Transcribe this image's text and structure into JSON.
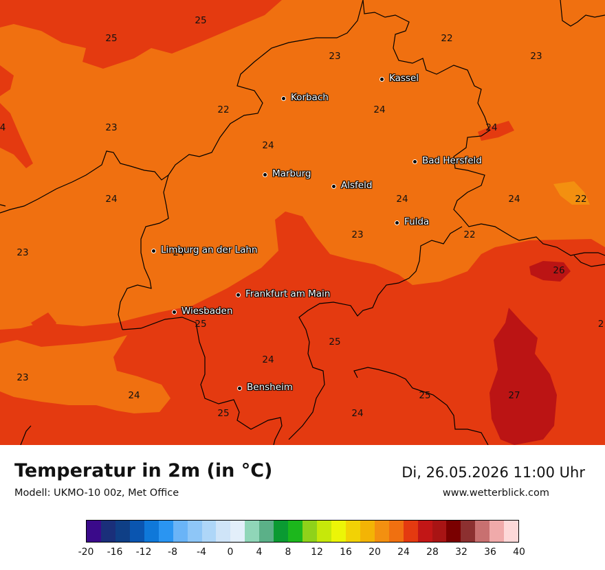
{
  "map": {
    "temperature_labels": [
      {
        "text": "25",
        "id": "t1"
      },
      {
        "text": "25",
        "id": "t2"
      },
      {
        "text": "23",
        "id": "t3"
      },
      {
        "text": "22",
        "id": "t4"
      },
      {
        "text": "23",
        "id": "t5"
      },
      {
        "text": "24",
        "id": "t6"
      },
      {
        "text": "22",
        "id": "t7"
      },
      {
        "text": "23",
        "id": "t8"
      },
      {
        "text": "24",
        "id": "t9"
      },
      {
        "text": "24",
        "id": "t10"
      },
      {
        "text": "24",
        "id": "t11"
      },
      {
        "text": "24",
        "id": "t12"
      },
      {
        "text": "24",
        "id": "t13"
      },
      {
        "text": "22",
        "id": "t14"
      },
      {
        "text": "23",
        "id": "t15"
      },
      {
        "text": "24",
        "id": "t16"
      },
      {
        "text": "22",
        "id": "t17"
      },
      {
        "text": "23",
        "id": "t18"
      },
      {
        "text": "26",
        "id": "t19"
      },
      {
        "text": "25",
        "id": "t20"
      },
      {
        "text": "25",
        "id": "t21"
      },
      {
        "text": "24",
        "id": "t22"
      },
      {
        "text": "23",
        "id": "t23"
      },
      {
        "text": "24",
        "id": "t24"
      },
      {
        "text": "25",
        "id": "t25"
      },
      {
        "text": "27",
        "id": "t26"
      },
      {
        "text": "24",
        "id": "t27"
      },
      {
        "text": "25",
        "id": "t28"
      },
      {
        "text": "4",
        "id": "t29"
      },
      {
        "text": "2",
        "id": "t30"
      },
      {
        "text": "24",
        "id": "t31"
      }
    ],
    "cities": [
      {
        "name": "Kassel"
      },
      {
        "name": "Korbach"
      },
      {
        "name": "Bad Hersfeld"
      },
      {
        "name": "Marburg"
      },
      {
        "name": "Alsfeld"
      },
      {
        "name": "Fulda"
      },
      {
        "name": "Limburg an der Lahn"
      },
      {
        "name": "Frankfurt am Main"
      },
      {
        "name": "Wiesbaden"
      },
      {
        "name": "Bensheim"
      }
    ],
    "colors": {
      "t23_24": "#f07010",
      "t24_26": "#e43a10",
      "t26_28": "#bb1414",
      "t22_23": "#f39010"
    }
  },
  "footer": {
    "title": "Temperatur in 2m (in °C)",
    "model": "Modell: UKMO-10 00z, Met Office",
    "datetime": "Di, 26.05.2026 11:00 Uhr",
    "website": "www.wetterblick.com"
  },
  "legend": {
    "colors": [
      "#3a0a8a",
      "#1a2f7a",
      "#0f3f86",
      "#0a55b0",
      "#0f78d9",
      "#2a95f2",
      "#6ab4f7",
      "#8ec6f7",
      "#aed6f8",
      "#cfe4f8",
      "#e3effa",
      "#90d6b8",
      "#5bb088",
      "#0a9a32",
      "#1cb71c",
      "#8fd21a",
      "#c6e80a",
      "#ecf507",
      "#f2d205",
      "#f3b405",
      "#f39010",
      "#f07010",
      "#e43a10",
      "#c21616",
      "#a81414",
      "#7a0000",
      "#8c3030",
      "#c87070",
      "#f0aaaa",
      "#fdd8d8"
    ],
    "ticks": [
      "-20",
      "-16",
      "-12",
      "-8",
      "-4",
      "0",
      "4",
      "8",
      "12",
      "16",
      "20",
      "24",
      "28",
      "32",
      "36",
      "40"
    ]
  }
}
